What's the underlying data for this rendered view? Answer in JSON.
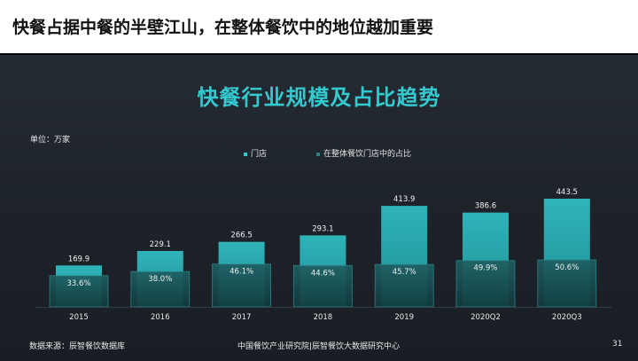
{
  "header": {
    "title": "快餐占据中餐的半壁江山，在整体餐饮中的地位越加重要"
  },
  "footer": {
    "source": "数据来源：辰智餐饮数据库",
    "org": "中国餐饮产业研究院|辰智餐饮大数据研究中心",
    "page_number": "31"
  },
  "colors": {
    "accent": "#34c9cf",
    "store_bar": "#27a8ad",
    "share_bar": "#16474a"
  },
  "chart_data": {
    "type": "bar",
    "title": "快餐行业规模及占比趋势",
    "unit_label": "单位：万家",
    "categories": [
      "2015",
      "2016",
      "2017",
      "2018",
      "2019",
      "2020Q2",
      "2020Q3"
    ],
    "series": [
      {
        "name": "门店",
        "values": [
          169.9,
          229.1,
          266.5,
          293.1,
          413.9,
          386.6,
          443.5
        ],
        "labels": [
          "169.9",
          "229.1",
          "266.5",
          "293.1",
          "413.9",
          "386.6",
          "443.5"
        ]
      },
      {
        "name": "在整体餐饮门店中的占比",
        "values": [
          33.6,
          38.0,
          46.1,
          44.6,
          45.7,
          49.9,
          50.6
        ],
        "labels": [
          "33.6%",
          "38.0%",
          "46.1%",
          "44.6%",
          "45.7%",
          "49.9%",
          "50.6%"
        ]
      }
    ],
    "legend_position": "top-center",
    "grid": false
  }
}
